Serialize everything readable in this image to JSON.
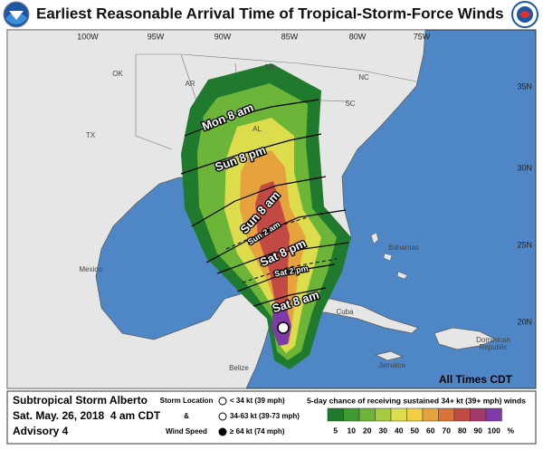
{
  "header": {
    "title": "Earliest Reasonable Arrival Time of Tropical-Storm-Force Winds"
  },
  "map": {
    "lon_labels": [
      "100W",
      "95W",
      "90W",
      "85W",
      "80W",
      "75W"
    ],
    "lat_labels": [
      "35N",
      "30N",
      "25N",
      "20N"
    ],
    "place_labels": [
      "OK",
      "AR",
      "TN",
      "NC",
      "SC",
      "TX",
      "AL",
      "Mexico",
      "Bahamas",
      "Cuba",
      "Jamaica",
      "Belize",
      "Dominican",
      "Republic"
    ],
    "time_labels": [
      "Mon 8 am",
      "Sun 8 pm",
      "Sun 8 am",
      "Sun 2 am",
      "Sat 8 pm",
      "Sat 2 pm",
      "Sat 8 am"
    ],
    "note": "All Times CDT"
  },
  "footer": {
    "storm": {
      "name": "Subtropical Storm Alberto",
      "date": "Sat. May. 26, 2018  4 am CDT",
      "advisory": "Advisory 4"
    },
    "key": {
      "title_lines": [
        "Storm Location",
        "&",
        "Wind Speed"
      ],
      "items": [
        "< 34 kt (39 mph)",
        "34-63 kt (39-73 mph)",
        "≥ 64 kt (74 mph)"
      ]
    },
    "scale": {
      "title": "5-day chance of receiving sustained 34+ kt (39+ mph) winds",
      "labels": [
        "5",
        "10",
        "20",
        "30",
        "40",
        "50",
        "60",
        "70",
        "80",
        "90",
        "100"
      ],
      "unit": "%",
      "colors": [
        "#1f7a2e",
        "#3f9a2f",
        "#6db538",
        "#a6cb3e",
        "#dcdc4c",
        "#f3cf45",
        "#e6a33d",
        "#d8743a",
        "#c24a45",
        "#a23a6d",
        "#7e3aa6"
      ]
    }
  }
}
